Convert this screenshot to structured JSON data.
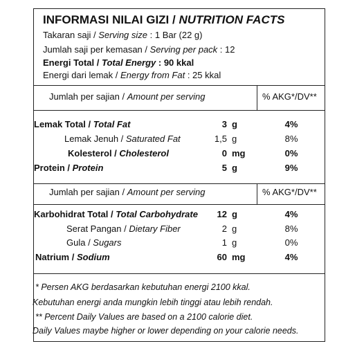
{
  "header": {
    "title_id": "INFORMASI NILAI GIZI / ",
    "title_en": "NUTRITION FACTS",
    "serving_size_id": "Takaran saji / ",
    "serving_size_en": "Serving size",
    "serving_size_value": " : 1 Bar (22 g)",
    "servings_id": "Jumlah saji per kemasan / ",
    "servings_en": "Serving per pack",
    "servings_value": " : 12",
    "energy_total_id": "Energi Total / ",
    "energy_total_en": "Total Energy",
    "energy_total_value": " :   90 kkal",
    "energy_fat_id": "Energi dari lemak / ",
    "energy_fat_en": "Energy from Fat",
    "energy_fat_value": " : 25 kkal"
  },
  "section1": {
    "header_id": "Jumlah per sajian / ",
    "header_en": "Amount per serving",
    "header_dv": "% AKG*/DV**",
    "rows": [
      {
        "label_id": "Lemak Total / ",
        "label_en": "Total Fat",
        "amount": "3",
        "unit": "g",
        "dv": "4%"
      },
      {
        "label_id": "Lemak Jenuh / ",
        "label_en": "Saturated Fat",
        "amount": "1,5",
        "unit": "g",
        "dv": "8%"
      },
      {
        "label_id": "Kolesterol / ",
        "label_en": "Cholesterol",
        "amount": "0",
        "unit": "mg",
        "dv": "0%"
      },
      {
        "label_id": "Protein / ",
        "label_en": "Protein",
        "amount": "5",
        "unit": "g",
        "dv": "9%"
      }
    ]
  },
  "section2": {
    "header_id": "Jumlah per sajian / ",
    "header_en": "Amount per serving",
    "header_dv": "% AKG*/DV**",
    "rows": [
      {
        "label_id": "Karbohidrat Total / ",
        "label_en": "Total Carbohydrate",
        "amount": "12",
        "unit": "g",
        "dv": "4%"
      },
      {
        "label_id": "Serat Pangan / ",
        "label_en": "Dietary Fiber",
        "amount": "2",
        "unit": "g",
        "dv": "8%"
      },
      {
        "label_id": "Gula / ",
        "label_en": "Sugars",
        "amount": "1",
        "unit": "g",
        "dv": "0%"
      },
      {
        "label_id": "Natrium / ",
        "label_en": "Sodium",
        "amount": "60",
        "unit": "mg",
        "dv": "4%"
      }
    ]
  },
  "footnotes": [
    "* Persen AKG berdasarkan kebutuhan energi 2100 kkal.",
    "Kebutuhan energi anda mungkin lebih tinggi atau lebih rendah.",
    "** Percent Daily Values are based on a 2100 calorie diet.",
    "Daily Values maybe higher or lower depending on your calorie needs."
  ]
}
